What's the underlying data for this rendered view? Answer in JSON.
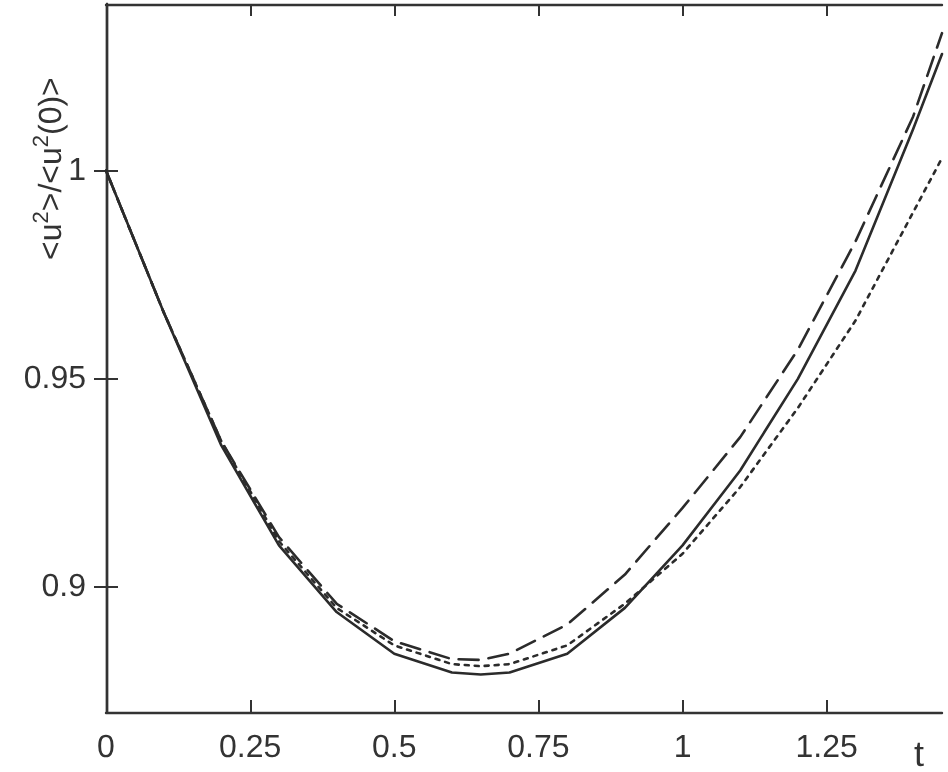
{
  "chart_data": {
    "type": "line",
    "xlabel": "t",
    "ylabel": "<u$^{2}$>/<u$^{2}$(0)>",
    "xlim": [
      0,
      1.45
    ],
    "xticks": [
      0,
      0.25,
      0.5,
      0.75,
      1,
      1.25
    ],
    "ylim": [
      0.87,
      1.04
    ],
    "yticks": [
      0.9,
      0.95,
      1
    ],
    "grid": false,
    "marker": "none",
    "series": [
      {
        "color": "#2b2b2b",
        "line_style": "solid",
        "x": [
          0,
          0.1,
          0.2,
          0.3,
          0.4,
          0.5,
          0.6,
          0.65,
          0.7,
          0.8,
          0.9,
          1.0,
          1.1,
          1.2,
          1.3,
          1.4,
          1.45
        ],
        "values": [
          1,
          0.966,
          0.934,
          0.91,
          0.894,
          0.884,
          0.8795,
          0.879,
          0.8795,
          0.884,
          0.895,
          0.91,
          0.928,
          0.95,
          0.976,
          1.01,
          1.028
        ]
      },
      {
        "color": "#2b2b2b",
        "line_style": "dashed",
        "x": [
          0,
          0.1,
          0.2,
          0.3,
          0.4,
          0.5,
          0.6,
          0.65,
          0.7,
          0.8,
          0.9,
          1.0,
          1.1,
          1.2,
          1.3,
          1.4,
          1.45
        ],
        "values": [
          1,
          0.966,
          0.935,
          0.912,
          0.896,
          0.887,
          0.8827,
          0.8825,
          0.884,
          0.891,
          0.903,
          0.919,
          0.936,
          0.957,
          0.983,
          1.013,
          1.033
        ]
      },
      {
        "color": "#2b2b2b",
        "line_style": "dotted",
        "x": [
          0,
          0.1,
          0.2,
          0.3,
          0.4,
          0.5,
          0.6,
          0.65,
          0.7,
          0.8,
          0.9,
          1.0,
          1.1,
          1.2,
          1.3,
          1.4,
          1.45
        ],
        "values": [
          1,
          0.966,
          0.935,
          0.911,
          0.895,
          0.886,
          0.8815,
          0.881,
          0.8815,
          0.886,
          0.896,
          0.908,
          0.924,
          0.943,
          0.964,
          0.99,
          1.003
        ]
      }
    ]
  }
}
